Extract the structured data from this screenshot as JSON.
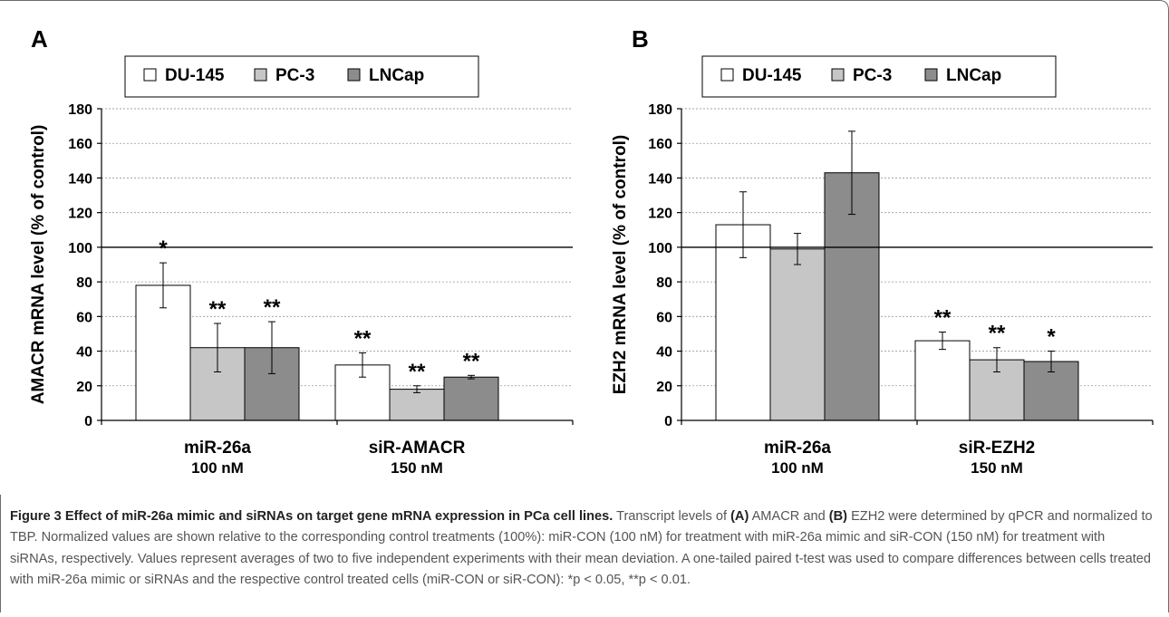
{
  "legend": [
    "DU-145",
    "PC-3",
    "LNCap"
  ],
  "colors": {
    "DU-145": "#ffffff",
    "PC-3": "#c6c6c6",
    "LNCap": "#8c8c8c",
    "axis": "#000000",
    "grid": "#999999"
  },
  "chart_data": [
    {
      "type": "bar",
      "panel_label": "A",
      "ylabel": "AMACR mRNA level (% of control)",
      "ylim": [
        0,
        180
      ],
      "yticks": [
        0,
        20,
        40,
        60,
        80,
        100,
        120,
        140,
        160,
        180
      ],
      "grid": true,
      "legend_position": "top-left",
      "reference_line": 100,
      "categories": [
        [
          "miR-26a",
          "100 nM"
        ],
        [
          "siR-AMACR",
          "150 nM"
        ]
      ],
      "series": [
        {
          "name": "DU-145",
          "values": [
            78,
            32
          ],
          "errors": [
            13,
            7
          ],
          "sig": [
            "*",
            "**"
          ]
        },
        {
          "name": "PC-3",
          "values": [
            42,
            18
          ],
          "errors": [
            14,
            2
          ],
          "sig": [
            "**",
            "**"
          ]
        },
        {
          "name": "LNCap",
          "values": [
            42,
            25
          ],
          "errors": [
            15,
            1
          ],
          "sig": [
            "**",
            "**"
          ]
        }
      ]
    },
    {
      "type": "bar",
      "panel_label": "B",
      "ylabel": "EZH2 mRNA level (% of control)",
      "ylim": [
        0,
        180
      ],
      "yticks": [
        0,
        20,
        40,
        60,
        80,
        100,
        120,
        140,
        160,
        180
      ],
      "grid": true,
      "legend_position": "top-left",
      "reference_line": 100,
      "categories": [
        [
          "miR-26a",
          "100 nM"
        ],
        [
          "siR-EZH2",
          "150 nM"
        ]
      ],
      "series": [
        {
          "name": "DU-145",
          "values": [
            113,
            46
          ],
          "errors": [
            19,
            5
          ],
          "sig": [
            "",
            "**"
          ]
        },
        {
          "name": "PC-3",
          "values": [
            99,
            35
          ],
          "errors": [
            9,
            7
          ],
          "sig": [
            "",
            "**"
          ]
        },
        {
          "name": "LNCap",
          "values": [
            143,
            34
          ],
          "errors": [
            24,
            6
          ],
          "sig": [
            "",
            "*"
          ]
        }
      ]
    }
  ],
  "caption": {
    "title": "Figure 3 Effect of miR-26a mimic and siRNAs on target gene mRNA expression in PCa cell lines.",
    "t1": " Transcript levels of ",
    "a_label": "(A)",
    "t2": " AMACR and ",
    "b_label": "(B)",
    "t3": " EZH2 were determined by qPCR and normalized to TBP. Normalized values are shown relative to the corresponding control treatments (100%): miR-CON (100 nM) for treatment with miR-26a mimic and siR-CON (150 nM) for treatment with siRNAs, respectively. Values represent averages of two to five independent experiments with their mean deviation. A one-tailed paired t-test was used to compare differences between cells treated with miR-26a mimic or siRNAs and the respective control treated cells (miR-CON or siR-CON): *p < 0.05, **p < 0.01."
  }
}
